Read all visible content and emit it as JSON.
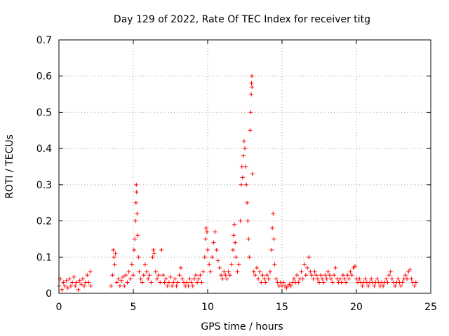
{
  "chart_data": {
    "type": "scatter",
    "title": "Day 129 of 2022, Rate Of TEC Index for receiver titg",
    "xlabel": "GPS time / hours",
    "ylabel": "ROTI / TECUs",
    "xlim": [
      0,
      25
    ],
    "ylim": [
      0,
      0.7
    ],
    "xticks": [
      "0",
      "5",
      "10",
      "15",
      "20",
      "25"
    ],
    "yticks": [
      "0",
      "0.1",
      "0.2",
      "0.3",
      "0.4",
      "0.5",
      "0.6",
      "0.7"
    ],
    "grid": true,
    "legend": "none",
    "marker": "plus",
    "color": "#ff0000",
    "points": [
      [
        0.0,
        0.02
      ],
      [
        0.1,
        0.04
      ],
      [
        0.2,
        0.01
      ],
      [
        0.3,
        0.03
      ],
      [
        0.4,
        0.02
      ],
      [
        0.5,
        0.035
      ],
      [
        0.6,
        0.015
      ],
      [
        0.7,
        0.04
      ],
      [
        0.8,
        0.02
      ],
      [
        0.9,
        0.03
      ],
      [
        1.0,
        0.045
      ],
      [
        1.1,
        0.02
      ],
      [
        1.2,
        0.03
      ],
      [
        1.3,
        0.01
      ],
      [
        1.4,
        0.035
      ],
      [
        1.5,
        0.025
      ],
      [
        1.6,
        0.04
      ],
      [
        1.7,
        0.02
      ],
      [
        1.8,
        0.03
      ],
      [
        1.9,
        0.05
      ],
      [
        2.0,
        0.03
      ],
      [
        2.1,
        0.06
      ],
      [
        2.15,
        0.02
      ],
      [
        3.5,
        0.02
      ],
      [
        3.6,
        0.05
      ],
      [
        3.65,
        0.12
      ],
      [
        3.7,
        0.1
      ],
      [
        3.75,
        0.08
      ],
      [
        3.8,
        0.11
      ],
      [
        3.9,
        0.03
      ],
      [
        4.0,
        0.04
      ],
      [
        4.1,
        0.02
      ],
      [
        4.2,
        0.035
      ],
      [
        4.3,
        0.045
      ],
      [
        4.4,
        0.02
      ],
      [
        4.5,
        0.05
      ],
      [
        4.6,
        0.03
      ],
      [
        4.7,
        0.06
      ],
      [
        4.8,
        0.04
      ],
      [
        4.9,
        0.08
      ],
      [
        5.0,
        0.05
      ],
      [
        5.05,
        0.12
      ],
      [
        5.1,
        0.15
      ],
      [
        5.15,
        0.2
      ],
      [
        5.18,
        0.25
      ],
      [
        5.2,
        0.3
      ],
      [
        5.22,
        0.28
      ],
      [
        5.25,
        0.22
      ],
      [
        5.3,
        0.16
      ],
      [
        5.35,
        0.1
      ],
      [
        5.4,
        0.06
      ],
      [
        5.5,
        0.04
      ],
      [
        5.6,
        0.03
      ],
      [
        5.7,
        0.05
      ],
      [
        5.8,
        0.08
      ],
      [
        5.9,
        0.06
      ],
      [
        6.0,
        0.04
      ],
      [
        6.1,
        0.05
      ],
      [
        6.2,
        0.03
      ],
      [
        6.3,
        0.1
      ],
      [
        6.35,
        0.12
      ],
      [
        6.4,
        0.11
      ],
      [
        6.5,
        0.06
      ],
      [
        6.6,
        0.04
      ],
      [
        6.7,
        0.05
      ],
      [
        6.8,
        0.03
      ],
      [
        6.9,
        0.12
      ],
      [
        7.0,
        0.05
      ],
      [
        7.1,
        0.03
      ],
      [
        7.2,
        0.04
      ],
      [
        7.3,
        0.02
      ],
      [
        7.4,
        0.03
      ],
      [
        7.5,
        0.045
      ],
      [
        7.6,
        0.02
      ],
      [
        7.7,
        0.03
      ],
      [
        7.8,
        0.04
      ],
      [
        7.9,
        0.02
      ],
      [
        8.0,
        0.03
      ],
      [
        8.1,
        0.05
      ],
      [
        8.2,
        0.07
      ],
      [
        8.3,
        0.04
      ],
      [
        8.4,
        0.03
      ],
      [
        8.5,
        0.02
      ],
      [
        8.6,
        0.03
      ],
      [
        8.7,
        0.02
      ],
      [
        8.8,
        0.04
      ],
      [
        8.9,
        0.03
      ],
      [
        9.0,
        0.02
      ],
      [
        9.1,
        0.04
      ],
      [
        9.2,
        0.05
      ],
      [
        9.3,
        0.03
      ],
      [
        9.4,
        0.04
      ],
      [
        9.5,
        0.05
      ],
      [
        9.6,
        0.03
      ],
      [
        9.7,
        0.06
      ],
      [
        9.8,
        0.1
      ],
      [
        9.85,
        0.15
      ],
      [
        9.9,
        0.18
      ],
      [
        9.95,
        0.17
      ],
      [
        10.0,
        0.12
      ],
      [
        10.1,
        0.08
      ],
      [
        10.2,
        0.06
      ],
      [
        10.3,
        0.1
      ],
      [
        10.4,
        0.14
      ],
      [
        10.5,
        0.17
      ],
      [
        10.6,
        0.12
      ],
      [
        10.7,
        0.09
      ],
      [
        10.8,
        0.07
      ],
      [
        10.9,
        0.05
      ],
      [
        11.0,
        0.04
      ],
      [
        11.1,
        0.06
      ],
      [
        11.2,
        0.05
      ],
      [
        11.3,
        0.04
      ],
      [
        11.4,
        0.06
      ],
      [
        11.5,
        0.05
      ],
      [
        11.6,
        0.08
      ],
      [
        11.7,
        0.12
      ],
      [
        11.75,
        0.16
      ],
      [
        11.8,
        0.19
      ],
      [
        11.85,
        0.14
      ],
      [
        11.9,
        0.1
      ],
      [
        12.0,
        0.06
      ],
      [
        12.1,
        0.08
      ],
      [
        12.2,
        0.2
      ],
      [
        12.25,
        0.3
      ],
      [
        12.3,
        0.35
      ],
      [
        12.35,
        0.32
      ],
      [
        12.4,
        0.38
      ],
      [
        12.45,
        0.42
      ],
      [
        12.5,
        0.4
      ],
      [
        12.55,
        0.35
      ],
      [
        12.6,
        0.3
      ],
      [
        12.65,
        0.25
      ],
      [
        12.7,
        0.2
      ],
      [
        12.75,
        0.15
      ],
      [
        12.8,
        0.1
      ],
      [
        12.85,
        0.45
      ],
      [
        12.9,
        0.5
      ],
      [
        12.93,
        0.55
      ],
      [
        12.95,
        0.58
      ],
      [
        12.97,
        0.6
      ],
      [
        12.98,
        0.57
      ],
      [
        13.0,
        0.33
      ],
      [
        13.1,
        0.06
      ],
      [
        13.2,
        0.05
      ],
      [
        13.3,
        0.07
      ],
      [
        13.4,
        0.04
      ],
      [
        13.5,
        0.06
      ],
      [
        13.6,
        0.03
      ],
      [
        13.7,
        0.05
      ],
      [
        13.8,
        0.04
      ],
      [
        13.9,
        0.03
      ],
      [
        14.0,
        0.05
      ],
      [
        14.1,
        0.04
      ],
      [
        14.2,
        0.06
      ],
      [
        14.3,
        0.12
      ],
      [
        14.35,
        0.18
      ],
      [
        14.4,
        0.22
      ],
      [
        14.45,
        0.15
      ],
      [
        14.5,
        0.08
      ],
      [
        14.6,
        0.04
      ],
      [
        14.7,
        0.03
      ],
      [
        14.8,
        0.02
      ],
      [
        14.9,
        0.03
      ],
      [
        15.0,
        0.02
      ],
      [
        15.1,
        0.03
      ],
      [
        15.2,
        0.02
      ],
      [
        15.3,
        0.015
      ],
      [
        15.4,
        0.02
      ],
      [
        15.5,
        0.025
      ],
      [
        15.6,
        0.02
      ],
      [
        15.7,
        0.03
      ],
      [
        15.8,
        0.04
      ],
      [
        15.9,
        0.03
      ],
      [
        16.0,
        0.05
      ],
      [
        16.1,
        0.03
      ],
      [
        16.2,
        0.04
      ],
      [
        16.3,
        0.06
      ],
      [
        16.4,
        0.04
      ],
      [
        16.5,
        0.08
      ],
      [
        16.6,
        0.05
      ],
      [
        16.7,
        0.07
      ],
      [
        16.8,
        0.1
      ],
      [
        16.9,
        0.06
      ],
      [
        17.0,
        0.05
      ],
      [
        17.1,
        0.04
      ],
      [
        17.2,
        0.06
      ],
      [
        17.3,
        0.05
      ],
      [
        17.4,
        0.04
      ],
      [
        17.5,
        0.03
      ],
      [
        17.6,
        0.05
      ],
      [
        17.7,
        0.04
      ],
      [
        17.8,
        0.03
      ],
      [
        17.9,
        0.05
      ],
      [
        18.0,
        0.04
      ],
      [
        18.1,
        0.06
      ],
      [
        18.2,
        0.05
      ],
      [
        18.3,
        0.04
      ],
      [
        18.4,
        0.03
      ],
      [
        18.5,
        0.05
      ],
      [
        18.6,
        0.07
      ],
      [
        18.7,
        0.04
      ],
      [
        18.8,
        0.03
      ],
      [
        18.9,
        0.04
      ],
      [
        19.0,
        0.03
      ],
      [
        19.1,
        0.05
      ],
      [
        19.2,
        0.04
      ],
      [
        19.3,
        0.03
      ],
      [
        19.4,
        0.05
      ],
      [
        19.5,
        0.04
      ],
      [
        19.6,
        0.06
      ],
      [
        19.7,
        0.05
      ],
      [
        19.8,
        0.07
      ],
      [
        19.9,
        0.075
      ],
      [
        20.0,
        0.04
      ],
      [
        20.1,
        0.03
      ],
      [
        20.2,
        0.04
      ],
      [
        20.3,
        0.03
      ],
      [
        20.4,
        0.02
      ],
      [
        20.5,
        0.03
      ],
      [
        20.6,
        0.04
      ],
      [
        20.7,
        0.03
      ],
      [
        20.8,
        0.02
      ],
      [
        20.9,
        0.03
      ],
      [
        21.0,
        0.04
      ],
      [
        21.1,
        0.03
      ],
      [
        21.2,
        0.02
      ],
      [
        21.3,
        0.03
      ],
      [
        21.4,
        0.04
      ],
      [
        21.5,
        0.03
      ],
      [
        21.6,
        0.02
      ],
      [
        21.7,
        0.03
      ],
      [
        21.8,
        0.02
      ],
      [
        21.9,
        0.03
      ],
      [
        22.0,
        0.04
      ],
      [
        22.1,
        0.03
      ],
      [
        22.2,
        0.05
      ],
      [
        22.3,
        0.06
      ],
      [
        22.4,
        0.04
      ],
      [
        22.5,
        0.03
      ],
      [
        22.6,
        0.02
      ],
      [
        22.7,
        0.03
      ],
      [
        22.8,
        0.04
      ],
      [
        22.9,
        0.03
      ],
      [
        23.0,
        0.02
      ],
      [
        23.1,
        0.03
      ],
      [
        23.2,
        0.04
      ],
      [
        23.3,
        0.05
      ],
      [
        23.4,
        0.04
      ],
      [
        23.5,
        0.06
      ],
      [
        23.6,
        0.065
      ],
      [
        23.7,
        0.04
      ],
      [
        23.8,
        0.03
      ],
      [
        23.9,
        0.02
      ],
      [
        24.0,
        0.03
      ]
    ]
  }
}
